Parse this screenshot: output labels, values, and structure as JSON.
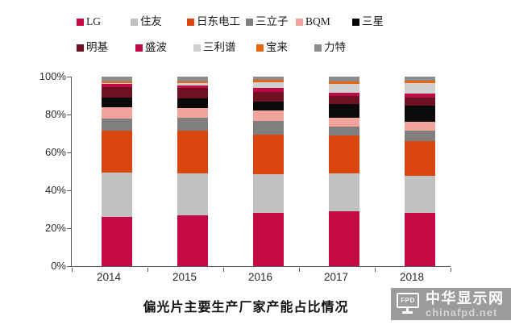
{
  "chart_data": {
    "type": "bar",
    "subtype": "stacked-percent",
    "title": "偏光片主要生产厂家产能占比情况",
    "categories": [
      "2014",
      "2015",
      "2016",
      "2017",
      "2018"
    ],
    "y_ticks": [
      "100%",
      "80%",
      "60%",
      "40%",
      "20%",
      "0%"
    ],
    "ylim": [
      0,
      100
    ],
    "unit": "%",
    "grid": false,
    "legend_position": "top",
    "series": [
      {
        "name": "LG",
        "color": "#C40A44",
        "values": [
          26,
          27,
          28,
          29,
          28
        ]
      },
      {
        "name": "住友",
        "color": "#C1C1C1",
        "values": [
          23.5,
          22,
          20.5,
          20,
          19.5
        ]
      },
      {
        "name": "日东电工",
        "color": "#DA470E",
        "values": [
          22,
          22.5,
          21,
          20,
          18.5
        ]
      },
      {
        "name": "三立子",
        "color": "#7F7F7F",
        "values": [
          6.5,
          7,
          7,
          4.5,
          5.5
        ]
      },
      {
        "name": "BQM",
        "color": "#F2A49C",
        "values": [
          6,
          5,
          5.5,
          5,
          4.5
        ]
      },
      {
        "name": "三星",
        "color": "#0A0A0A",
        "values": [
          5,
          5,
          5,
          7,
          8.5
        ]
      },
      {
        "name": "明基",
        "color": "#6E1123",
        "values": [
          5.5,
          5.5,
          5,
          4.5,
          4.5
        ]
      },
      {
        "name": "盛波",
        "color": "#BE0A46",
        "values": [
          1.5,
          1.5,
          2,
          1.5,
          2
        ]
      },
      {
        "name": "三利谱",
        "color": "#D0D0D0",
        "values": [
          0.5,
          1,
          3,
          4.5,
          5.5
        ]
      },
      {
        "name": "宝来",
        "color": "#E8650D",
        "values": [
          1,
          1,
          1.5,
          1.5,
          1.5
        ]
      },
      {
        "name": "力特",
        "color": "#8C8C8C",
        "values": [
          2.5,
          2.5,
          1.5,
          2.5,
          2
        ]
      }
    ]
  },
  "watermark": {
    "brand": "中华显示网",
    "domain": "chinafpd.net",
    "icon_label": "FPD"
  }
}
